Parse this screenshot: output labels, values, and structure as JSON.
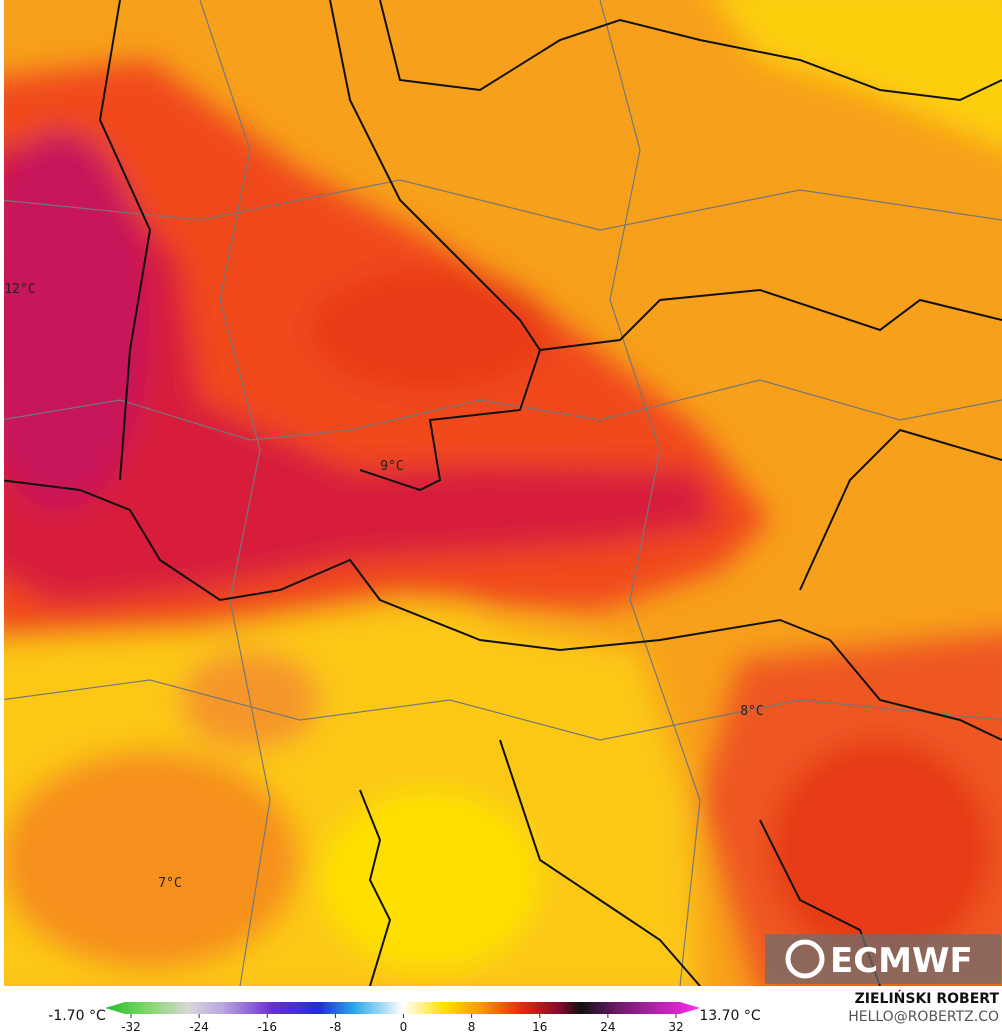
{
  "labels": [
    "12°C",
    "9°C",
    "8°C",
    "7°C"
  ],
  "logo": "ECMWF",
  "colorbar": {
    "min_label": "-1.70 °C",
    "max_label": "13.70 °C",
    "ticks": [
      -32,
      -24,
      -16,
      -8,
      0,
      8,
      16,
      24,
      32
    ]
  },
  "credit": {
    "author": "ZIELIŃSKI ROBERT",
    "contact": "HELLO@ROBERTZ.CO"
  }
}
